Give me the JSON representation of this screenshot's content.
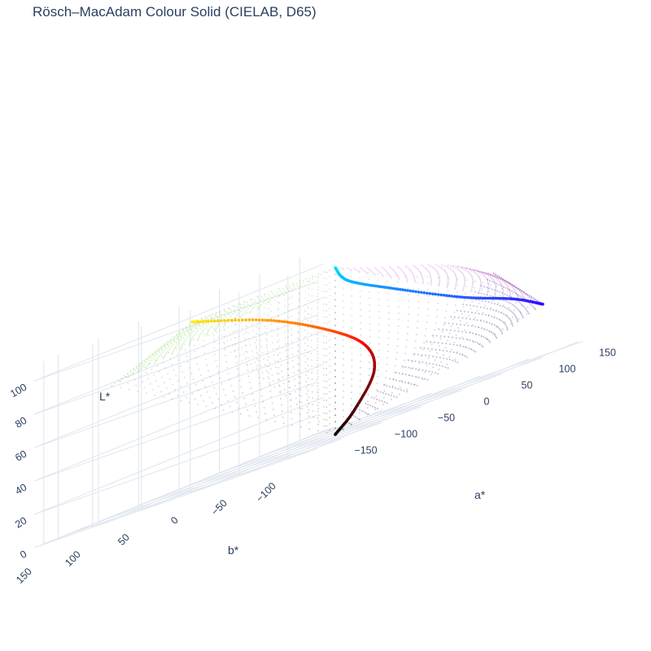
{
  "chart_data": {
    "type": "scatter3d",
    "title": "Rösch–MacAdam Colour Solid (CIELAB, D65)",
    "axes": {
      "a": {
        "label": "a*",
        "range": [
          -180,
          180
        ],
        "ticks": [
          -150,
          -100,
          -50,
          0,
          50,
          100,
          150
        ]
      },
      "b": {
        "label": "b*",
        "range": [
          -130,
          160
        ],
        "ticks": [
          -100,
          -50,
          0,
          50,
          100,
          150
        ]
      },
      "L": {
        "label": "L*",
        "range": [
          0,
          110
        ],
        "ticks": [
          0,
          20,
          40,
          60,
          80,
          100
        ]
      }
    },
    "grid": true,
    "series": [
      {
        "role": "surface",
        "description_points": "mesh of optimal colour stimuli",
        "vertices": {
          "white": {
            "a": 0,
            "b": 0,
            "L": 100
          },
          "black": {
            "a": 0,
            "b": 0,
            "L": 0
          },
          "yellow": {
            "a": -20,
            "b": 130,
            "L": 98
          },
          "blue": {
            "a": 100,
            "b": -130,
            "L": 32
          },
          "green": {
            "a": -150,
            "b": 105,
            "L": 80
          },
          "magenta": {
            "a": 130,
            "b": -55,
            "L": 60
          }
        }
      },
      {
        "role": "edge-curve",
        "colour_from": "#ffee00",
        "colour_to": "#000000",
        "points": [
          {
            "a": -20,
            "b": 130,
            "L": 98
          },
          {
            "a": 20,
            "b": 85,
            "L": 82
          },
          {
            "a": 60,
            "b": 55,
            "L": 62
          },
          {
            "a": 80,
            "b": 35,
            "L": 45
          },
          {
            "a": 70,
            "b": 18,
            "L": 28
          },
          {
            "a": 30,
            "b": 5,
            "L": 10
          },
          {
            "a": 0,
            "b": 0,
            "L": 0
          }
        ]
      },
      {
        "role": "edge-curve",
        "colour_from": "#00e5ff",
        "colour_to": "#3a00ff",
        "points": [
          {
            "a": 0,
            "b": 0,
            "L": 100
          },
          {
            "a": -20,
            "b": -30,
            "L": 90
          },
          {
            "a": -10,
            "b": -70,
            "L": 75
          },
          {
            "a": 30,
            "b": -105,
            "L": 55
          },
          {
            "a": 70,
            "b": -125,
            "L": 42
          },
          {
            "a": 100,
            "b": -130,
            "L": 32
          }
        ]
      }
    ]
  }
}
